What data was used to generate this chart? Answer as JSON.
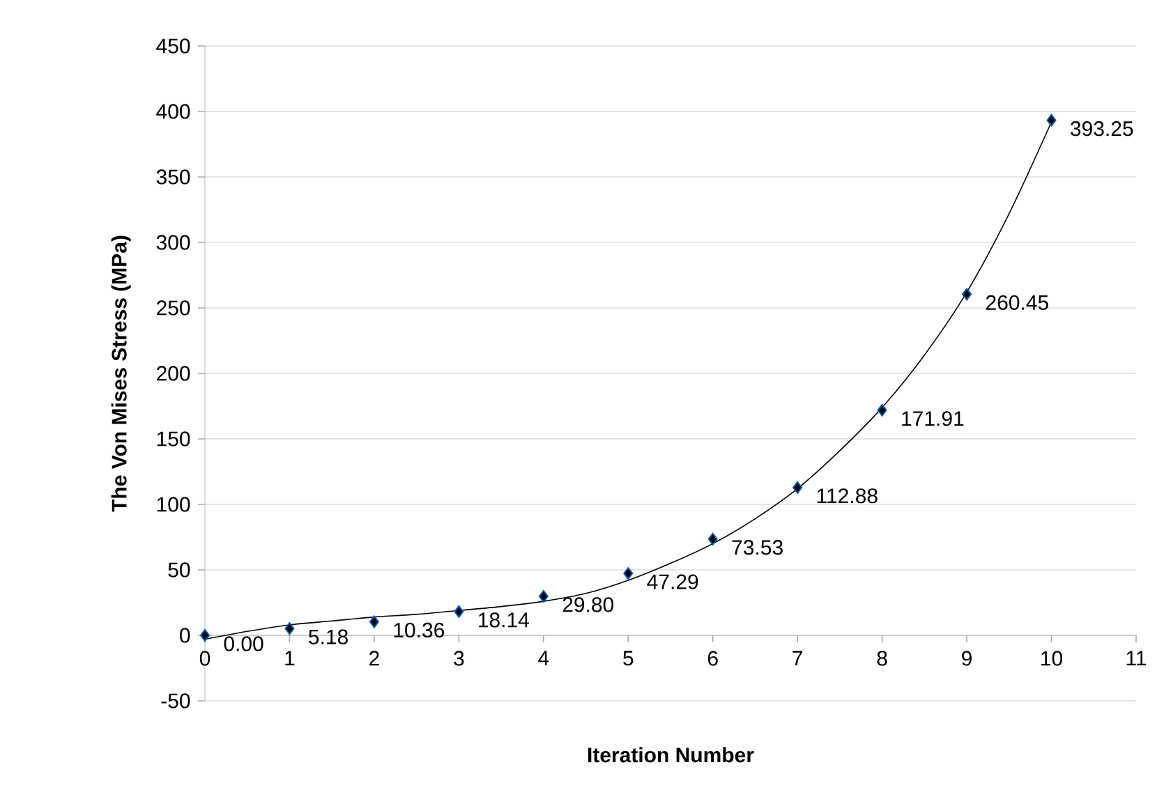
{
  "chart_data": {
    "type": "scatter",
    "xlabel": "Iteration Number",
    "ylabel": "The Von Mises Stress (MPa)",
    "xlim": [
      0,
      11
    ],
    "xticks": [
      0,
      1,
      2,
      3,
      4,
      5,
      6,
      7,
      8,
      9,
      10,
      11
    ],
    "ylim": [
      -50,
      450
    ],
    "yticks": [
      -50,
      0,
      50,
      100,
      150,
      200,
      250,
      300,
      350,
      400,
      450
    ],
    "grid": "y",
    "series": [
      {
        "marker": "diamond",
        "color": "#000000",
        "x": [
          0,
          1,
          2,
          3,
          4,
          5,
          6,
          7,
          8,
          9,
          10
        ],
        "values": [
          0.0,
          5.18,
          10.36,
          18.14,
          29.8,
          47.29,
          73.53,
          112.88,
          171.91,
          260.45,
          393.25
        ],
        "value_labels": [
          "0.00",
          "5.18",
          "10.36",
          "18.14",
          "29.80",
          "47.29",
          "73.53",
          "112.88",
          "171.91",
          "260.45",
          "393.25"
        ]
      },
      {
        "type": "line",
        "marker": "none",
        "line_style": "solid",
        "color": "#000000",
        "x": [
          0,
          0.5,
          1,
          1.5,
          2,
          2.5,
          3,
          3.5,
          4,
          4.5,
          5,
          5.5,
          6,
          6.5,
          7,
          7.5,
          8,
          8.5,
          9,
          9.5,
          10
        ],
        "values": [
          -3,
          3,
          8,
          11,
          14,
          16,
          19,
          22,
          26,
          32,
          42,
          55,
          70,
          89,
          112,
          141,
          174,
          214,
          262,
          322,
          392
        ]
      }
    ]
  }
}
